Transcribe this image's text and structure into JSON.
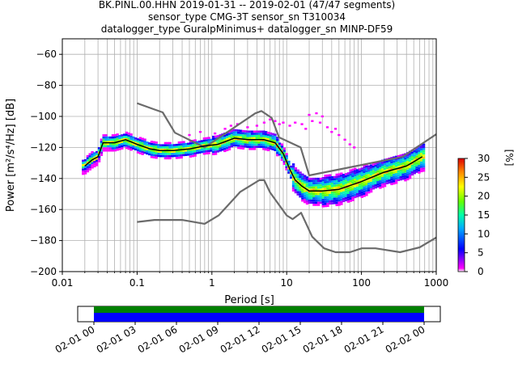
{
  "title": {
    "line1": "BK.PINL.00.HHN   2019-01-31 -- 2019-02-01  (47/47 segments)",
    "line2": "sensor_type CMG-3T sensor_sn T310034",
    "line3": "datalogger_type GuralpMinimus+ datalogger_sn MINP-DF59"
  },
  "chart_data": {
    "type": "heatmap",
    "xlabel": "Period [s]",
    "ylabel": "Power [m²/s⁴/Hz] [dB]",
    "x_scale": "log",
    "xlim": [
      0.01,
      1000
    ],
    "ylim": [
      -200,
      -50
    ],
    "x_ticks": [
      0.01,
      0.1,
      1,
      10,
      100,
      1000
    ],
    "x_tick_labels": [
      "0.01",
      "0.1",
      "1",
      "10",
      "100",
      "1000"
    ],
    "y_ticks": [
      -200,
      -180,
      -160,
      -140,
      -120,
      -100,
      -80,
      -60
    ],
    "y_tick_labels": [
      "−200",
      "−180",
      "−160",
      "−140",
      "−120",
      "−100",
      "−80",
      "−60"
    ],
    "grid": true,
    "colorbar": {
      "label": "[%]",
      "range": [
        0,
        30
      ],
      "ticks": [
        "0",
        "5",
        "10",
        "15",
        "20",
        "25",
        "30"
      ]
    },
    "series": [
      {
        "role": "new_high_noise_model",
        "color": "#6b6b6b",
        "x": [
          0.1,
          0.17,
          0.22,
          0.32,
          0.8,
          3.8,
          4.6,
          6.3,
          7.9,
          15.4,
          20,
          354.8,
          1000
        ],
        "y": [
          -91.5,
          -95.5,
          -97.4,
          -110.5,
          -120,
          -98,
          -96.5,
          -101,
          -113.5,
          -120,
          -138,
          -126,
          -111.5
        ]
      },
      {
        "role": "new_low_noise_model",
        "color": "#6b6b6b",
        "x": [
          0.1,
          0.17,
          0.4,
          0.8,
          1.24,
          2.4,
          4.3,
          5,
          6,
          10,
          12,
          15.6,
          21.9,
          31.6,
          45,
          70,
          101,
          154,
          328,
          600,
          1000
        ],
        "y": [
          -168,
          -166.7,
          -166.7,
          -169.2,
          -163.7,
          -148.6,
          -141.1,
          -141.1,
          -149,
          -163.8,
          -166.2,
          -162.1,
          -177.5,
          -185,
          -187.5,
          -187.5,
          -185,
          -185,
          -187.5,
          -184.4,
          -178
        ]
      },
      {
        "role": "mode",
        "color": "#000000",
        "x": [
          0.02,
          0.025,
          0.03,
          0.035,
          0.05,
          0.07,
          0.1,
          0.15,
          0.2,
          0.3,
          0.5,
          0.8,
          1.2,
          2,
          3,
          5,
          7,
          9,
          11,
          13,
          16,
          20,
          30,
          50,
          100,
          200,
          400,
          650
        ],
        "y": [
          -132,
          -128,
          -126,
          -117,
          -117,
          -115,
          -118,
          -121,
          -122,
          -122,
          -121,
          -119,
          -118,
          -114,
          -115,
          -115,
          -117,
          -124,
          -134,
          -141,
          -145,
          -148,
          -148,
          -147,
          -142,
          -136,
          -132,
          -126
        ]
      }
    ]
  },
  "timeline": {
    "tick_labels": [
      "02-01 00",
      "02-01 03",
      "02-01 06",
      "02-01 09",
      "02-01 12",
      "02-01 15",
      "02-01 18",
      "02-01 21",
      "02-02 00"
    ],
    "coverage_colors": [
      "#008000",
      "#0000ff"
    ],
    "coverage_fraction": 1.0
  }
}
